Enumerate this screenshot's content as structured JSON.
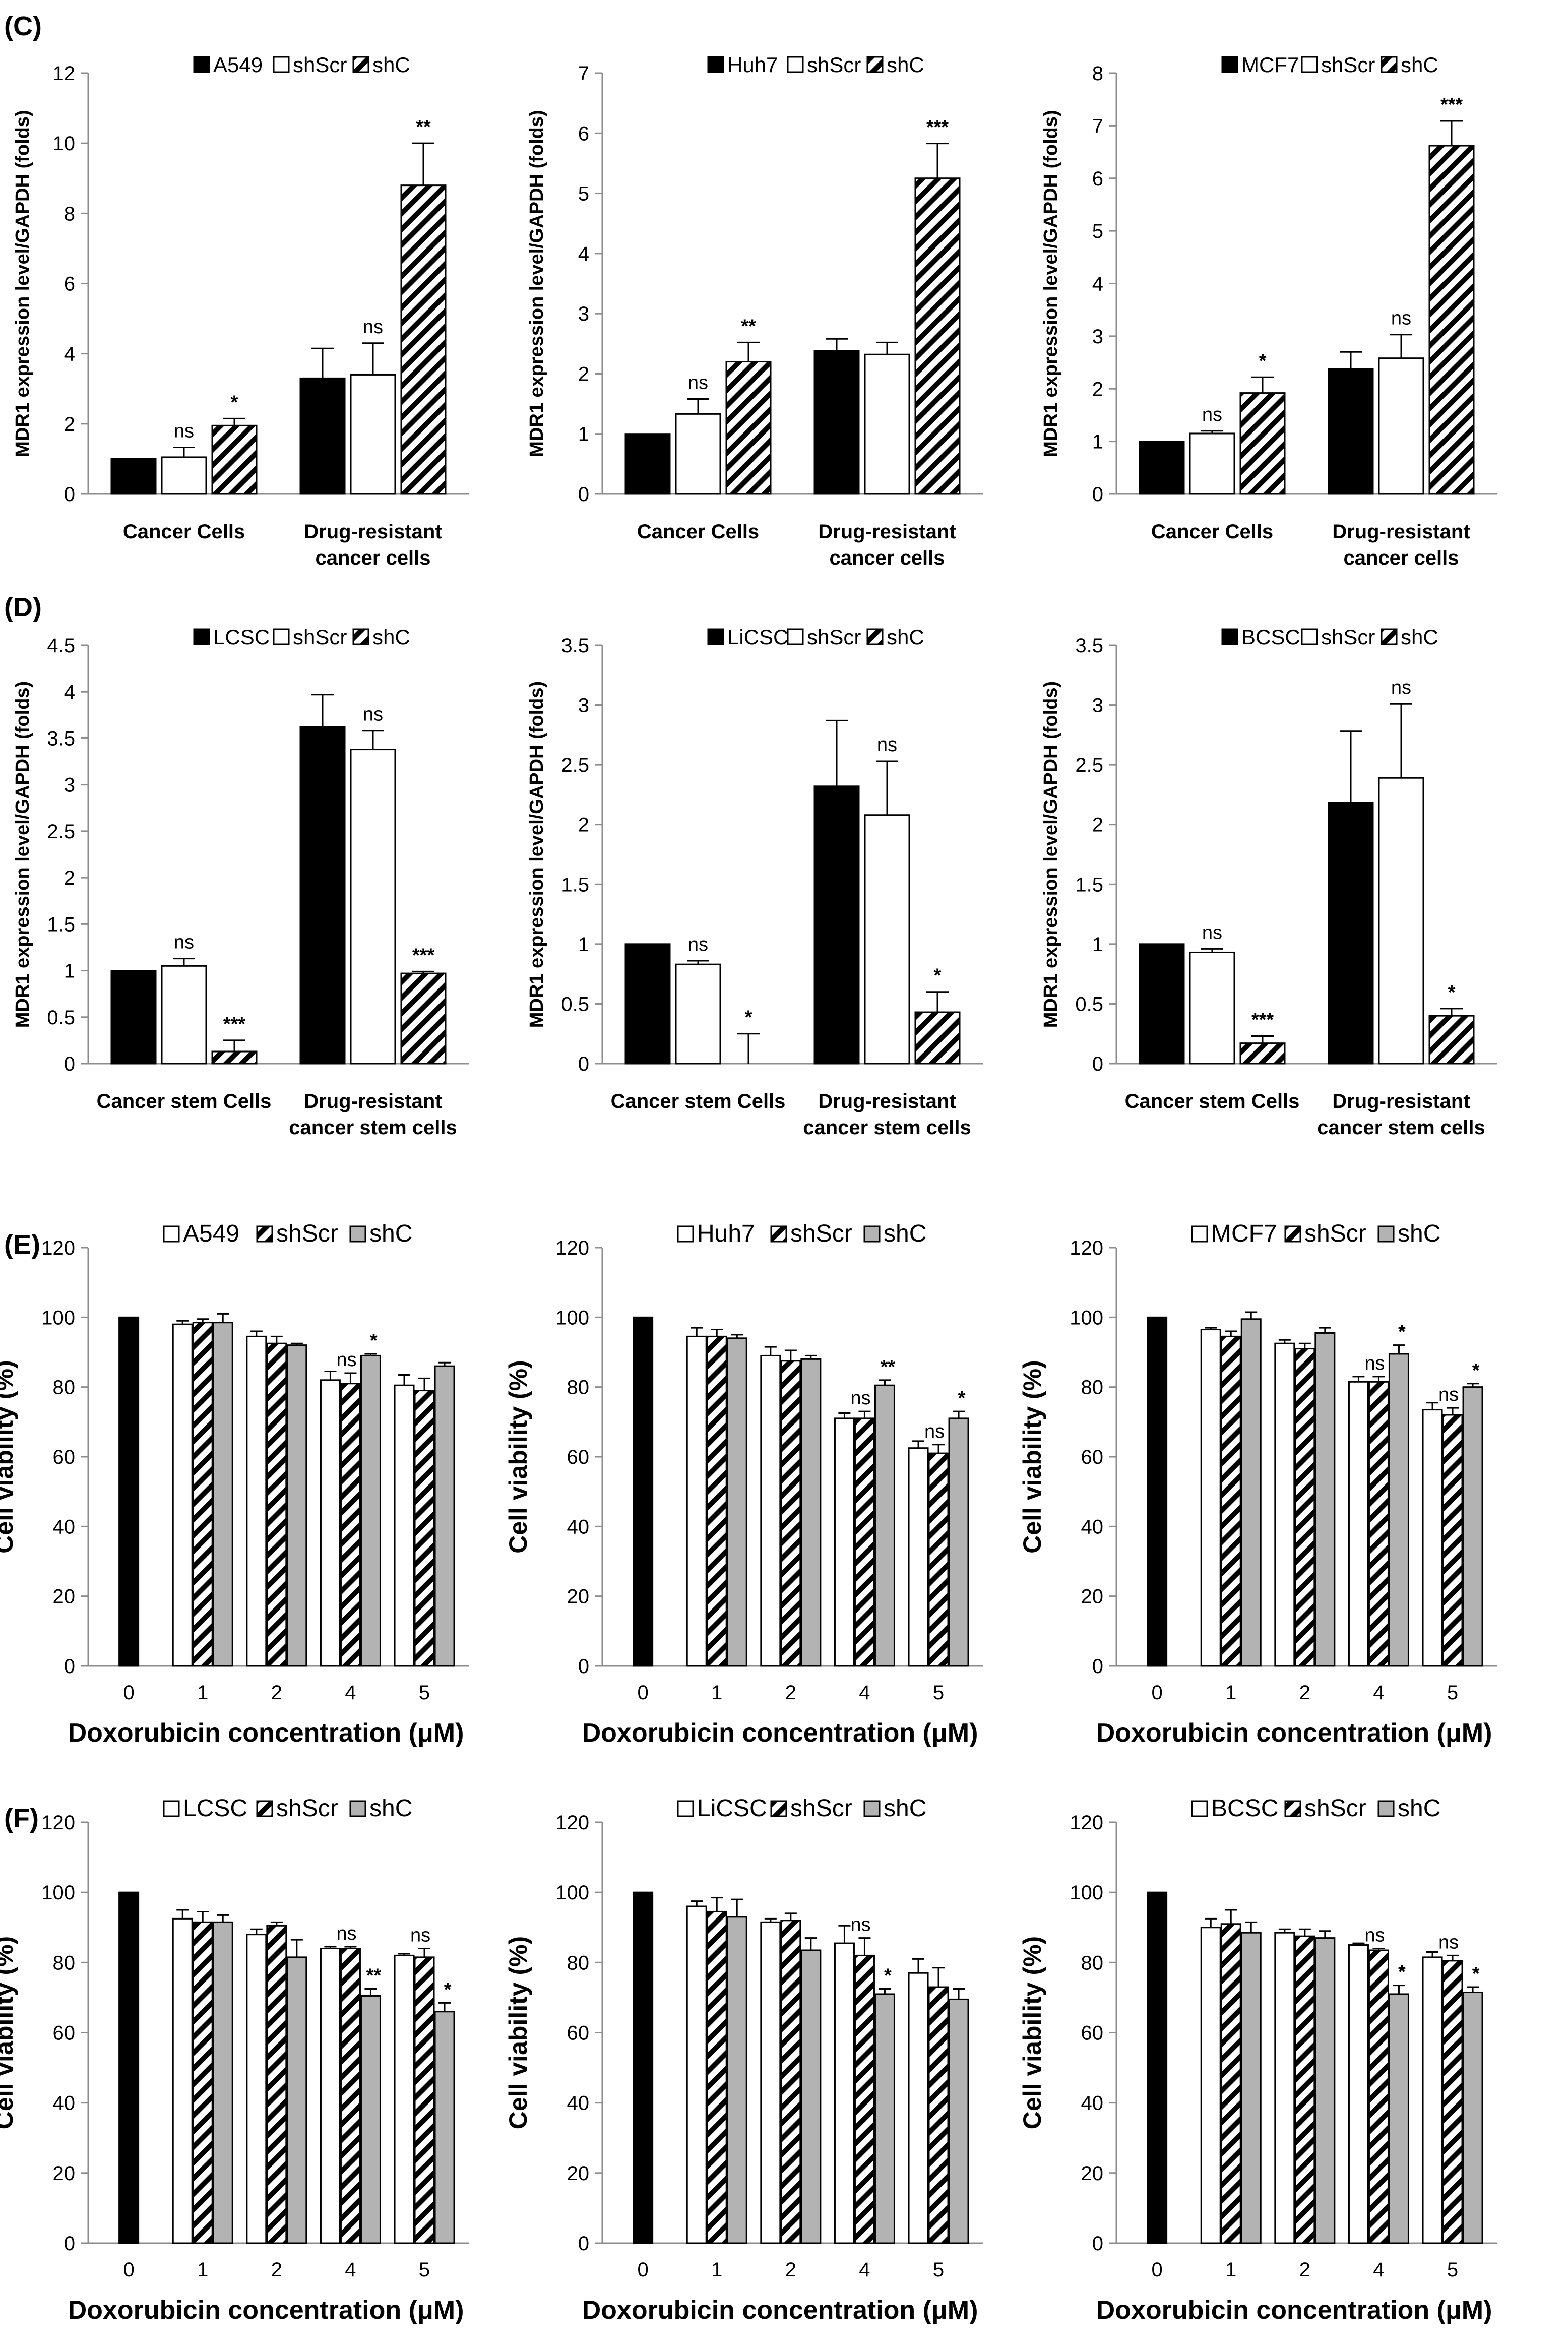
{
  "panel_labels": [
    "(C)",
    "(D)",
    "(E)",
    "(F)"
  ],
  "chart_data": [
    {
      "panel": "C",
      "type": "bar",
      "style": "expr",
      "ylabel": "MDR1 expression level/GAPDH (folds)",
      "ylim": [
        0,
        12
      ],
      "ystep": 2,
      "legend": [
        "A549",
        "shScr",
        "shC"
      ],
      "groups": [
        [
          "Cancer Cells"
        ],
        [
          "Drug-resistant",
          "cancer cells"
        ]
      ],
      "series": [
        {
          "name": "A549",
          "values": [
            1.0,
            3.3
          ],
          "errors": [
            0.0,
            0.85
          ]
        },
        {
          "name": "shScr",
          "values": [
            1.05,
            3.4
          ],
          "errors": [
            0.28,
            0.9
          ]
        },
        {
          "name": "shC",
          "values": [
            1.95,
            8.8
          ],
          "errors": [
            0.2,
            1.2
          ]
        }
      ],
      "significance": [
        [
          "",
          "ns",
          "*"
        ],
        [
          "",
          "ns",
          "**"
        ]
      ]
    },
    {
      "panel": "C",
      "type": "bar",
      "style": "expr",
      "ylabel": "MDR1 expression level/GAPDH (folds)",
      "ylim": [
        0,
        7
      ],
      "ystep": 1,
      "legend": [
        "Huh7",
        "shScr",
        "shC"
      ],
      "groups": [
        [
          "Cancer Cells"
        ],
        [
          "Drug-resistant",
          "cancer cells"
        ]
      ],
      "series": [
        {
          "name": "Huh7",
          "values": [
            1.0,
            2.38
          ],
          "errors": [
            0.0,
            0.2
          ]
        },
        {
          "name": "shScr",
          "values": [
            1.33,
            2.32
          ],
          "errors": [
            0.25,
            0.2
          ]
        },
        {
          "name": "shC",
          "values": [
            2.2,
            5.25
          ],
          "errors": [
            0.32,
            0.58
          ]
        }
      ],
      "significance": [
        [
          "",
          "ns",
          "**"
        ],
        [
          "",
          "",
          "***"
        ]
      ]
    },
    {
      "panel": "C",
      "type": "bar",
      "style": "expr",
      "ylabel": "MDR1 expression level/GAPDH (folds)",
      "ylim": [
        0,
        8
      ],
      "ystep": 1,
      "legend": [
        "MCF7",
        "shScr",
        "shC"
      ],
      "groups": [
        [
          "Cancer Cells"
        ],
        [
          "Drug-resistant",
          "cancer cells"
        ]
      ],
      "series": [
        {
          "name": "MCF7",
          "values": [
            1.0,
            2.38
          ],
          "errors": [
            0.0,
            0.32
          ]
        },
        {
          "name": "shScr",
          "values": [
            1.15,
            2.58
          ],
          "errors": [
            0.05,
            0.45
          ]
        },
        {
          "name": "shC",
          "values": [
            1.92,
            6.62
          ],
          "errors": [
            0.3,
            0.47
          ]
        }
      ],
      "significance": [
        [
          "",
          "ns",
          "*"
        ],
        [
          "",
          "ns",
          "***"
        ]
      ]
    },
    {
      "panel": "D",
      "type": "bar",
      "style": "expr",
      "ylabel": "MDR1 expression level/GAPDH (folds)",
      "ylim": [
        0,
        4.5
      ],
      "ystep": 0.5,
      "legend": [
        "LCSC",
        "shScr",
        "shC"
      ],
      "groups": [
        [
          "Cancer stem Cells"
        ],
        [
          "Drug-resistant",
          "cancer stem cells"
        ]
      ],
      "series": [
        {
          "name": "LCSC",
          "values": [
            1.0,
            3.62
          ],
          "errors": [
            0.0,
            0.35
          ]
        },
        {
          "name": "shScr",
          "values": [
            1.05,
            3.38
          ],
          "errors": [
            0.08,
            0.2
          ]
        },
        {
          "name": "shC",
          "values": [
            0.13,
            0.97
          ],
          "errors": [
            0.12,
            0.02
          ]
        }
      ],
      "significance": [
        [
          "",
          "ns",
          "***"
        ],
        [
          "",
          "ns",
          "***"
        ]
      ]
    },
    {
      "panel": "D",
      "type": "bar",
      "style": "expr",
      "ylabel": "MDR1 expression level/GAPDH (folds)",
      "ylim": [
        0,
        3.5
      ],
      "ystep": 0.5,
      "legend": [
        "LiCSC",
        "shScr",
        "shC"
      ],
      "groups": [
        [
          "Cancer stem Cells"
        ],
        [
          "Drug-resistant",
          "cancer stem cells"
        ]
      ],
      "series": [
        {
          "name": "LiCSC",
          "values": [
            1.0,
            2.32
          ],
          "errors": [
            0.0,
            0.55
          ]
        },
        {
          "name": "shScr",
          "values": [
            0.83,
            2.08
          ],
          "errors": [
            0.03,
            0.45
          ]
        },
        {
          "name": "shC",
          "values": [
            0.0,
            0.43
          ],
          "errors": [
            0.25,
            0.17
          ]
        }
      ],
      "significance": [
        [
          "",
          "ns",
          "*"
        ],
        [
          "",
          "ns",
          "*"
        ]
      ]
    },
    {
      "panel": "D",
      "type": "bar",
      "style": "expr",
      "ylabel": "MDR1 expression level/GAPDH (folds)",
      "ylim": [
        0,
        3.5
      ],
      "ystep": 0.5,
      "legend": [
        "BCSC",
        "shScr",
        "shC"
      ],
      "groups": [
        [
          "Cancer stem Cells"
        ],
        [
          "Drug-resistant",
          "cancer stem cells"
        ]
      ],
      "series": [
        {
          "name": "BCSC",
          "values": [
            1.0,
            2.18
          ],
          "errors": [
            0.0,
            0.6
          ]
        },
        {
          "name": "shScr",
          "values": [
            0.93,
            2.39
          ],
          "errors": [
            0.03,
            0.62
          ]
        },
        {
          "name": "shC",
          "values": [
            0.17,
            0.4
          ],
          "errors": [
            0.06,
            0.06
          ]
        }
      ],
      "significance": [
        [
          "",
          "ns",
          "***"
        ],
        [
          "",
          "ns",
          "*"
        ]
      ]
    },
    {
      "panel": "E",
      "type": "bar",
      "style": "viab",
      "ylabel": "Cell viability (%)",
      "xlabel": "Doxorubicin concentration (μM)",
      "ylim": [
        0,
        120
      ],
      "ystep": 20,
      "categories": [
        "0",
        "1",
        "2",
        "4",
        "5"
      ],
      "legend": [
        "A549",
        "shScr",
        "shC"
      ],
      "series": [
        {
          "name": "A549",
          "values": [
            null,
            98,
            94.5,
            82,
            80.5
          ],
          "errors": [
            0,
            1,
            1.5,
            2.5,
            3
          ]
        },
        {
          "name": "shScr",
          "values": [
            null,
            98.5,
            92.5,
            81,
            79
          ],
          "errors": [
            0,
            1,
            2,
            3,
            3.5
          ]
        },
        {
          "name": "shC",
          "values": [
            null,
            98.5,
            92,
            89,
            86
          ],
          "errors": [
            0,
            2.5,
            0.5,
            0.5,
            1
          ]
        }
      ],
      "control": 100,
      "significance": [
        [
          "",
          "",
          ""
        ],
        [
          "",
          "",
          ""
        ],
        [
          "",
          "",
          ""
        ],
        [
          "",
          "ns",
          "*"
        ],
        [
          "",
          "",
          ""
        ]
      ]
    },
    {
      "panel": "E",
      "type": "bar",
      "style": "viab",
      "ylabel": "Cell viability (%)",
      "xlabel": "Doxorubicin concentration (μM)",
      "ylim": [
        0,
        120
      ],
      "ystep": 20,
      "categories": [
        "0",
        "1",
        "2",
        "4",
        "5"
      ],
      "legend": [
        "Huh7",
        "shScr",
        "shC"
      ],
      "series": [
        {
          "name": "Huh7",
          "values": [
            null,
            94.5,
            89,
            71,
            62.5
          ],
          "errors": [
            0,
            2.5,
            2.5,
            1.5,
            2
          ]
        },
        {
          "name": "shScr",
          "values": [
            null,
            94.5,
            87.5,
            71,
            61
          ],
          "errors": [
            0,
            2,
            3,
            2,
            2.5
          ]
        },
        {
          "name": "shC",
          "values": [
            null,
            94,
            88,
            80.5,
            71
          ],
          "errors": [
            0,
            1,
            1,
            1.5,
            2
          ]
        }
      ],
      "control": 100,
      "significance": [
        [
          "",
          "",
          ""
        ],
        [
          "",
          "",
          ""
        ],
        [
          "",
          "",
          ""
        ],
        [
          "",
          "ns",
          "**"
        ],
        [
          "",
          "ns",
          "*"
        ]
      ]
    },
    {
      "panel": "E",
      "type": "bar",
      "style": "viab",
      "ylabel": "Cell viability (%)",
      "xlabel": "Doxorubicin concentration (μM)",
      "ylim": [
        0,
        120
      ],
      "ystep": 20,
      "categories": [
        "0",
        "1",
        "2",
        "4",
        "5"
      ],
      "legend": [
        "MCF7",
        "shScr",
        "shC"
      ],
      "series": [
        {
          "name": "MCF7",
          "values": [
            null,
            96.5,
            92.5,
            81.5,
            73.5
          ],
          "errors": [
            0,
            0.5,
            1,
            1.5,
            2
          ]
        },
        {
          "name": "shScr",
          "values": [
            null,
            94.5,
            91,
            81.5,
            72
          ],
          "errors": [
            0,
            1.5,
            1.5,
            1.5,
            2
          ]
        },
        {
          "name": "shC",
          "values": [
            null,
            99.5,
            95.5,
            89.5,
            80
          ],
          "errors": [
            0,
            2,
            1.5,
            2.5,
            1
          ]
        }
      ],
      "control": 100,
      "significance": [
        [
          "",
          "",
          ""
        ],
        [
          "",
          "",
          ""
        ],
        [
          "",
          "",
          ""
        ],
        [
          "",
          "ns",
          "*"
        ],
        [
          "",
          "ns",
          "*"
        ]
      ]
    },
    {
      "panel": "F",
      "type": "bar",
      "style": "viab",
      "ylabel": "Cell viability (%)",
      "xlabel": "Doxorubicin concentration (μM)",
      "ylim": [
        0,
        120
      ],
      "ystep": 20,
      "categories": [
        "0",
        "1",
        "2",
        "4",
        "5"
      ],
      "legend": [
        "LCSC",
        "shScr",
        "shC"
      ],
      "series": [
        {
          "name": "LCSC",
          "values": [
            null,
            92.5,
            88,
            84,
            82
          ],
          "errors": [
            0,
            2.5,
            1.5,
            0.5,
            0.5
          ]
        },
        {
          "name": "shScr",
          "values": [
            null,
            91.5,
            90.5,
            84,
            81.5
          ],
          "errors": [
            0,
            3,
            1,
            0.5,
            2.5
          ]
        },
        {
          "name": "shC",
          "values": [
            null,
            91.5,
            81.5,
            70.5,
            66
          ],
          "errors": [
            0,
            2,
            5,
            2,
            2.5
          ]
        }
      ],
      "control": 100,
      "significance": [
        [
          "",
          "",
          ""
        ],
        [
          "",
          "",
          ""
        ],
        [
          "",
          "",
          ""
        ],
        [
          "",
          "ns",
          "**"
        ],
        [
          "",
          "ns",
          "*"
        ]
      ]
    },
    {
      "panel": "F",
      "type": "bar",
      "style": "viab",
      "ylabel": "Cell viability (%)",
      "xlabel": "Doxorubicin concentration (μM)",
      "ylim": [
        0,
        120
      ],
      "ystep": 20,
      "categories": [
        "0",
        "1",
        "2",
        "4",
        "5"
      ],
      "legend": [
        "LiCSC",
        "shScr",
        "shC"
      ],
      "series": [
        {
          "name": "LiCSC",
          "values": [
            null,
            96,
            91.5,
            85.5,
            77
          ],
          "errors": [
            0,
            1.5,
            1,
            5,
            4
          ]
        },
        {
          "name": "shScr",
          "values": [
            null,
            94.5,
            92,
            82,
            73
          ],
          "errors": [
            0,
            4,
            2,
            5,
            5.5
          ]
        },
        {
          "name": "shC",
          "values": [
            null,
            93,
            83.5,
            71,
            69.5
          ],
          "errors": [
            0,
            5,
            3.5,
            1.5,
            3
          ]
        }
      ],
      "control": 100,
      "significance": [
        [
          "",
          "",
          ""
        ],
        [
          "",
          "",
          ""
        ],
        [
          "",
          "",
          ""
        ],
        [
          "",
          "ns",
          "*"
        ],
        [
          "",
          "",
          ""
        ]
      ]
    },
    {
      "panel": "F",
      "type": "bar",
      "style": "viab",
      "ylabel": "Cell viability (%)",
      "xlabel": "Doxorubicin concentration (μM)",
      "ylim": [
        0,
        120
      ],
      "ystep": 20,
      "categories": [
        "0",
        "1",
        "2",
        "4",
        "5"
      ],
      "legend": [
        "BCSC",
        "shScr",
        "shC"
      ],
      "series": [
        {
          "name": "BCSC",
          "values": [
            null,
            90,
            88.5,
            85,
            81.5
          ],
          "errors": [
            0,
            2.5,
            1,
            0.5,
            1.5
          ]
        },
        {
          "name": "shScr",
          "values": [
            null,
            91,
            87.5,
            83.5,
            80.5
          ],
          "errors": [
            0,
            4,
            2,
            0.5,
            1.5
          ]
        },
        {
          "name": "shC",
          "values": [
            null,
            88.5,
            87,
            71,
            71.5
          ],
          "errors": [
            0,
            3,
            2,
            2.5,
            1.5
          ]
        }
      ],
      "control": 100,
      "significance": [
        [
          "",
          "",
          ""
        ],
        [
          "",
          "",
          ""
        ],
        [
          "",
          "",
          ""
        ],
        [
          "",
          "ns",
          "*"
        ],
        [
          "",
          "ns",
          "*"
        ]
      ]
    }
  ]
}
